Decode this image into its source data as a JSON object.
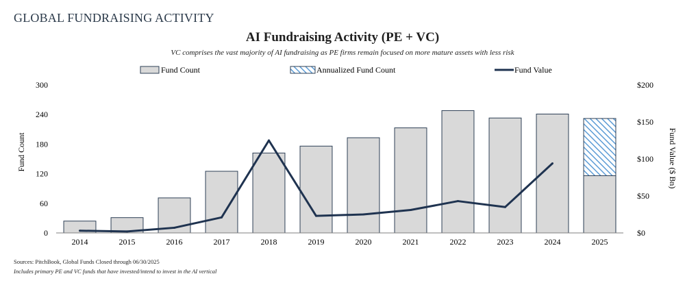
{
  "section_title": "GLOBAL FUNDRAISING ACTIVITY",
  "notes": {
    "sources": "Sources: PitchBook, Global Funds Closed through 06/30/2025",
    "includes": "Includes primary PE and VC funds that have invested/intend to invest in the AI vertical"
  },
  "colors": {
    "bar_fill": "#d9d9d9",
    "bar_stroke": "#2d3f55",
    "line": "#1f3350",
    "hatch": "#5b9bd5"
  },
  "chart_data": {
    "type": "bar",
    "title": "AI Fundraising Activity (PE + VC)",
    "subtitle": "VC comprises the vast majority of AI fundraising as PE firms remain focused on more mature assets with less risk",
    "categories": [
      "2014",
      "2015",
      "2016",
      "2017",
      "2018",
      "2019",
      "2020",
      "2021",
      "2022",
      "2023",
      "2024",
      "2025"
    ],
    "series": [
      {
        "name": "Fund Count",
        "type": "bar",
        "axis": "left",
        "values": [
          24,
          31,
          71,
          125,
          162,
          176,
          193,
          213,
          248,
          233,
          241,
          116
        ]
      },
      {
        "name": "Annualized Fund Count",
        "type": "bar-hatched",
        "axis": "left",
        "values": [
          null,
          null,
          null,
          null,
          null,
          null,
          null,
          null,
          null,
          null,
          null,
          232
        ]
      },
      {
        "name": "Fund Value",
        "type": "line",
        "axis": "right",
        "values": [
          3,
          2,
          7,
          21,
          125,
          23,
          25,
          31,
          43,
          35,
          94,
          null
        ]
      }
    ],
    "ylabel": "Fund Count",
    "y2label": "Fund Value ($ Bn)",
    "ylim": [
      0,
      300
    ],
    "y2lim": [
      0,
      200
    ],
    "yticks": [
      "0",
      "60",
      "120",
      "180",
      "240",
      "300"
    ],
    "y2ticks": [
      "$0",
      "$50",
      "$100",
      "$150",
      "$200"
    ],
    "legend": "top-center",
    "grid": false
  }
}
